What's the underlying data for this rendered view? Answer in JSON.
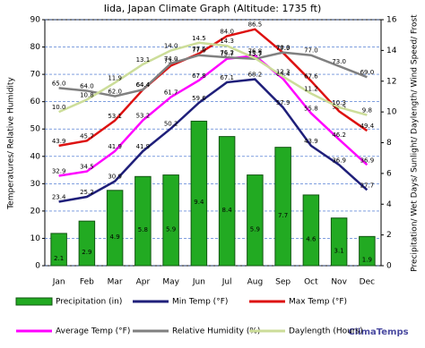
{
  "chart_data": {
    "type": "combo",
    "title": "Iida, Japan Climate Graph (Altitude: 1735 ft)",
    "y_label": "Temperatures/ Relative Humidity",
    "y2_label": "Precipitation/ Wet Days/ Sunlight/ Daylength/ Wind Speed/ Frost",
    "brand": "ClimaTemps",
    "categories": [
      "Jan",
      "Feb",
      "Mar",
      "Apr",
      "May",
      "Jun",
      "Jul",
      "Aug",
      "Sep",
      "Oct",
      "Nov",
      "Dec"
    ],
    "ylim": [
      0,
      90
    ],
    "yticks": [
      0,
      10,
      20,
      30,
      40,
      50,
      60,
      70,
      80,
      90
    ],
    "y2lim": [
      0,
      16
    ],
    "y2ticks": [
      0,
      2,
      4,
      6,
      8,
      10,
      12,
      14,
      16
    ],
    "grid": true,
    "series": [
      {
        "name": "Precipitation (in)",
        "type": "bar",
        "axis": "y2",
        "color": "#22aa22",
        "values": [
          2.1,
          2.9,
          4.9,
          5.8,
          5.9,
          9.4,
          8.4,
          5.9,
          7.7,
          4.6,
          3.1,
          1.9
        ]
      },
      {
        "name": "Min Temp (°F)",
        "type": "line",
        "color": "#1f1f7a",
        "values": [
          23.4,
          25.2,
          30.9,
          41.9,
          50.2,
          59.6,
          67.1,
          68.2,
          57.9,
          43.9,
          36.9,
          27.7
        ],
        "value_labels": [
          "23.4",
          "25.2",
          "30.9",
          "41.9",
          "50.2",
          "59.6",
          "67.1",
          "68.2",
          "57.9",
          "43.9",
          "36.9",
          "27.7"
        ]
      },
      {
        "name": "Max Temp (°F)",
        "type": "line",
        "color": "#dd1111",
        "values": [
          43.9,
          45.7,
          53.1,
          64.4,
          73.2,
          77.6,
          84,
          86.5,
          77.9,
          67.6,
          56.5,
          49.4
        ],
        "value_labels": [
          "43.9",
          "45.7",
          "53.1",
          "64.4",
          "73.2",
          "77.6",
          "84.0",
          "86.5",
          "77.9",
          "67.6",
          "56.5",
          "49.4"
        ]
      },
      {
        "name": "Average Temp (°F)",
        "type": "line",
        "color": "#ff00ff",
        "values": [
          32.9,
          34.5,
          41.9,
          53.2,
          61.7,
          67.8,
          75.7,
          76.8,
          68.4,
          55.8,
          46.2,
          36.9
        ],
        "value_labels": [
          "32.9",
          "34.5",
          "41.9",
          "53.2",
          "61.7",
          "67.8",
          "75.7",
          "76.8",
          "68.4",
          "55.8",
          "46.2",
          "36.9"
        ]
      },
      {
        "name": "Relative Humidity (%)",
        "type": "line",
        "color": "#808080",
        "values": [
          65,
          64,
          62,
          64.4,
          74,
          77,
          76.2,
          75.7,
          78,
          77,
          73,
          69
        ],
        "value_labels": [
          "65.0",
          "64.0",
          "62.0",
          "64.4",
          "74.0",
          "77.0",
          "76.2",
          "75.7",
          "78.0",
          "77.0",
          "73.0",
          "69.0"
        ]
      },
      {
        "name": "Daylength (Hours)",
        "type": "line",
        "axis": "y2",
        "color": "#ccdd99",
        "values": [
          10,
          10.8,
          11.9,
          13.1,
          14,
          14.5,
          14.3,
          13.5,
          12.3,
          11.2,
          10.3,
          9.8
        ],
        "value_labels": [
          "10.0",
          "10.8",
          "11.9",
          "13.1",
          "14.0",
          "14.5",
          "14.3",
          "13.5",
          "12.3",
          "11.2",
          "10.3",
          "9.8"
        ]
      }
    ]
  }
}
